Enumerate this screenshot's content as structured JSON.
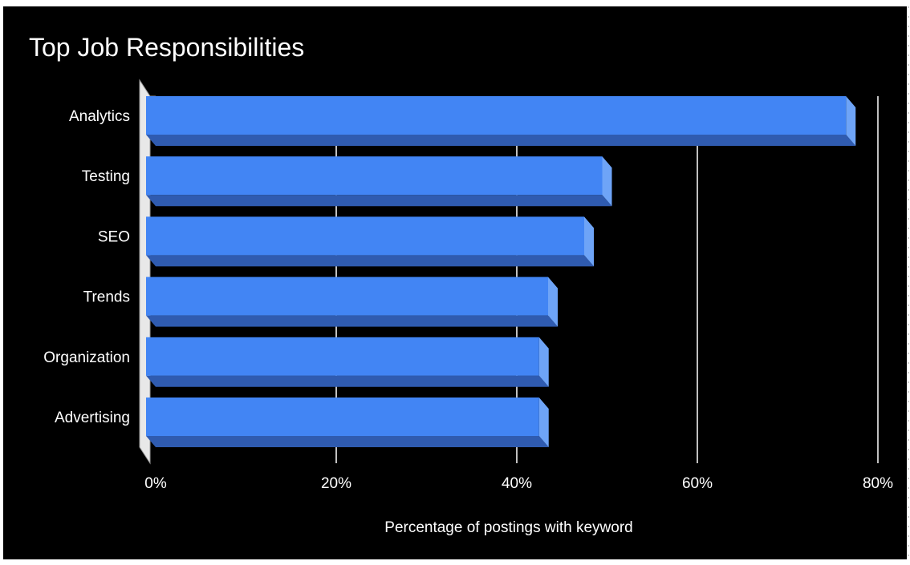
{
  "chart_data": {
    "type": "bar",
    "orientation": "horizontal",
    "style": "3d",
    "title": "Top Job Responsibilities",
    "xlabel": "Percentage of postings with keyword",
    "ylabel": "",
    "categories": [
      "Analytics",
      "Testing",
      "SEO",
      "Trends",
      "Organization",
      "Advertising"
    ],
    "values": [
      77,
      50,
      48,
      44,
      43,
      43
    ],
    "xlim": [
      0,
      80
    ],
    "xticks": [
      0,
      20,
      40,
      60,
      80
    ],
    "xtick_labels": [
      "0%",
      "20%",
      "40%",
      "60%",
      "80%"
    ],
    "grid": true,
    "legend": "none",
    "colors": {
      "background": "#000000",
      "bar_front": "#4285f4",
      "bar_bottom": "#2f5bb0",
      "bar_side": "#6ea4f7",
      "gridline": "#ffffff",
      "text": "#ffffff",
      "wall": "#e8e8e8"
    }
  }
}
